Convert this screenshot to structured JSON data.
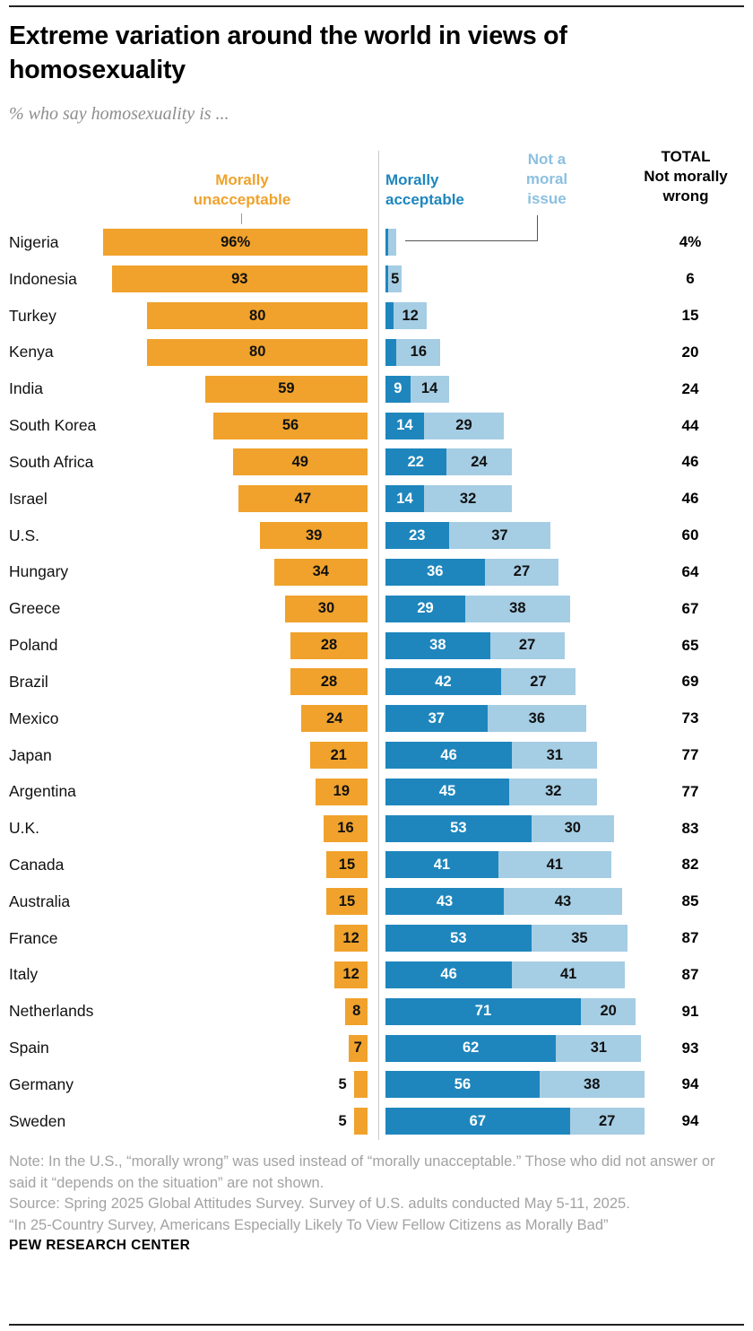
{
  "page": {
    "title": "Extreme variation around the world in views of homosexuality",
    "subtitle": "% who say homosexuality is ...",
    "footer": {
      "note": "Note: In the U.S., “morally wrong” was used instead of “morally unacceptable.” Those who did not answer or said it “depends on the situation” are not shown.",
      "source": "Source: Spring 2025 Global Attitudes Survey. Survey of U.S. adults conducted May 5-11, 2025.",
      "report": "“In 25-Country Survey, Americans Especially Likely To View Fellow Citizens as Morally Bad”",
      "brand": "PEW RESEARCH CENTER"
    }
  },
  "chart_data": {
    "type": "bar",
    "orientation": "horizontal-diverging",
    "legend": {
      "unacceptable": "Morally unacceptable",
      "acceptable": "Morally acceptable",
      "not_moral": "Not a moral issue",
      "total_title": "TOTAL",
      "total_sub": "Not morally wrong"
    },
    "colors": {
      "unacceptable": "#F0A22C",
      "acceptable": "#1E86BD",
      "not_moral": "#A5CDE4",
      "not_moral_label": "#8CC0DF"
    },
    "x_unit": "percent",
    "rows": [
      {
        "country": "Nigeria",
        "unacceptable": 96,
        "unacceptable_label": "96%",
        "acceptable": 1,
        "acceptable_label": "",
        "not_moral": 3,
        "not_moral_label": "",
        "total": 4,
        "total_label": "4%"
      },
      {
        "country": "Indonesia",
        "unacceptable": 93,
        "unacceptable_label": "93",
        "acceptable": 1,
        "acceptable_label": "",
        "not_moral": 5,
        "not_moral_label": "5",
        "total": 6,
        "total_label": "6"
      },
      {
        "country": "Turkey",
        "unacceptable": 80,
        "unacceptable_label": "80",
        "acceptable": 3,
        "acceptable_label": "",
        "not_moral": 12,
        "not_moral_label": "12",
        "total": 15,
        "total_label": "15"
      },
      {
        "country": "Kenya",
        "unacceptable": 80,
        "unacceptable_label": "80",
        "acceptable": 4,
        "acceptable_label": "",
        "not_moral": 16,
        "not_moral_label": "16",
        "total": 20,
        "total_label": "20"
      },
      {
        "country": "India",
        "unacceptable": 59,
        "unacceptable_label": "59",
        "acceptable": 9,
        "acceptable_label": "9",
        "not_moral": 14,
        "not_moral_label": "14",
        "total": 24,
        "total_label": "24"
      },
      {
        "country": "South Korea",
        "unacceptable": 56,
        "unacceptable_label": "56",
        "acceptable": 14,
        "acceptable_label": "14",
        "not_moral": 29,
        "not_moral_label": "29",
        "total": 44,
        "total_label": "44"
      },
      {
        "country": "South Africa",
        "unacceptable": 49,
        "unacceptable_label": "49",
        "acceptable": 22,
        "acceptable_label": "22",
        "not_moral": 24,
        "not_moral_label": "24",
        "total": 46,
        "total_label": "46"
      },
      {
        "country": "Israel",
        "unacceptable": 47,
        "unacceptable_label": "47",
        "acceptable": 14,
        "acceptable_label": "14",
        "not_moral": 32,
        "not_moral_label": "32",
        "total": 46,
        "total_label": "46"
      },
      {
        "country": "U.S.",
        "unacceptable": 39,
        "unacceptable_label": "39",
        "acceptable": 23,
        "acceptable_label": "23",
        "not_moral": 37,
        "not_moral_label": "37",
        "total": 60,
        "total_label": "60"
      },
      {
        "country": "Hungary",
        "unacceptable": 34,
        "unacceptable_label": "34",
        "acceptable": 36,
        "acceptable_label": "36",
        "not_moral": 27,
        "not_moral_label": "27",
        "total": 64,
        "total_label": "64"
      },
      {
        "country": "Greece",
        "unacceptable": 30,
        "unacceptable_label": "30",
        "acceptable": 29,
        "acceptable_label": "29",
        "not_moral": 38,
        "not_moral_label": "38",
        "total": 67,
        "total_label": "67"
      },
      {
        "country": "Poland",
        "unacceptable": 28,
        "unacceptable_label": "28",
        "acceptable": 38,
        "acceptable_label": "38",
        "not_moral": 27,
        "not_moral_label": "27",
        "total": 65,
        "total_label": "65"
      },
      {
        "country": "Brazil",
        "unacceptable": 28,
        "unacceptable_label": "28",
        "acceptable": 42,
        "acceptable_label": "42",
        "not_moral": 27,
        "not_moral_label": "27",
        "total": 69,
        "total_label": "69"
      },
      {
        "country": "Mexico",
        "unacceptable": 24,
        "unacceptable_label": "24",
        "acceptable": 37,
        "acceptable_label": "37",
        "not_moral": 36,
        "not_moral_label": "36",
        "total": 73,
        "total_label": "73"
      },
      {
        "country": "Japan",
        "unacceptable": 21,
        "unacceptable_label": "21",
        "acceptable": 46,
        "acceptable_label": "46",
        "not_moral": 31,
        "not_moral_label": "31",
        "total": 77,
        "total_label": "77"
      },
      {
        "country": "Argentina",
        "unacceptable": 19,
        "unacceptable_label": "19",
        "acceptable": 45,
        "acceptable_label": "45",
        "not_moral": 32,
        "not_moral_label": "32",
        "total": 77,
        "total_label": "77"
      },
      {
        "country": "U.K.",
        "unacceptable": 16,
        "unacceptable_label": "16",
        "acceptable": 53,
        "acceptable_label": "53",
        "not_moral": 30,
        "not_moral_label": "30",
        "total": 83,
        "total_label": "83"
      },
      {
        "country": "Canada",
        "unacceptable": 15,
        "unacceptable_label": "15",
        "acceptable": 41,
        "acceptable_label": "41",
        "not_moral": 41,
        "not_moral_label": "41",
        "total": 82,
        "total_label": "82"
      },
      {
        "country": "Australia",
        "unacceptable": 15,
        "unacceptable_label": "15",
        "acceptable": 43,
        "acceptable_label": "43",
        "not_moral": 43,
        "not_moral_label": "43",
        "total": 85,
        "total_label": "85"
      },
      {
        "country": "France",
        "unacceptable": 12,
        "unacceptable_label": "12",
        "acceptable": 53,
        "acceptable_label": "53",
        "not_moral": 35,
        "not_moral_label": "35",
        "total": 87,
        "total_label": "87"
      },
      {
        "country": "Italy",
        "unacceptable": 12,
        "unacceptable_label": "12",
        "acceptable": 46,
        "acceptable_label": "46",
        "not_moral": 41,
        "not_moral_label": "41",
        "total": 87,
        "total_label": "87"
      },
      {
        "country": "Netherlands",
        "unacceptable": 8,
        "unacceptable_label": "8",
        "acceptable": 71,
        "acceptable_label": "71",
        "not_moral": 20,
        "not_moral_label": "20",
        "total": 91,
        "total_label": "91"
      },
      {
        "country": "Spain",
        "unacceptable": 7,
        "unacceptable_label": "7",
        "acceptable": 62,
        "acceptable_label": "62",
        "not_moral": 31,
        "not_moral_label": "31",
        "total": 93,
        "total_label": "93"
      },
      {
        "country": "Germany",
        "unacceptable": 5,
        "unacceptable_label": "5",
        "acceptable": 56,
        "acceptable_label": "56",
        "not_moral": 38,
        "not_moral_label": "38",
        "total": 94,
        "total_label": "94"
      },
      {
        "country": "Sweden",
        "unacceptable": 5,
        "unacceptable_label": "5",
        "acceptable": 67,
        "acceptable_label": "67",
        "not_moral": 27,
        "not_moral_label": "27",
        "total": 94,
        "total_label": "94"
      }
    ]
  }
}
